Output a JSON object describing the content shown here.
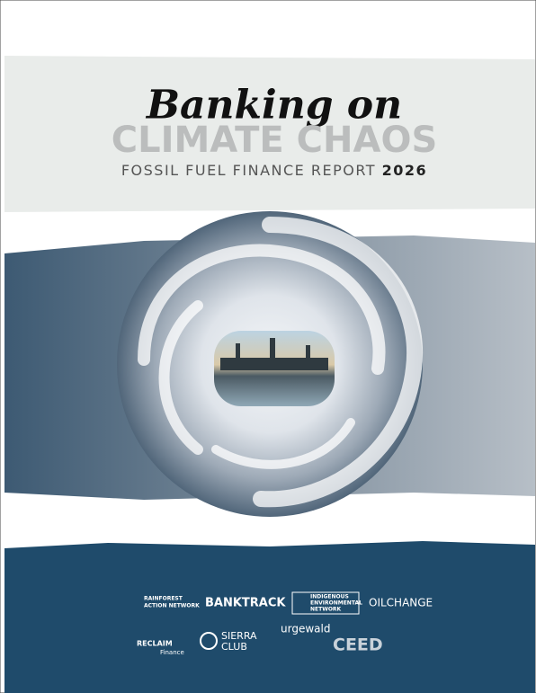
{
  "cover": {
    "title": "Banking on",
    "title_highlight": "CLIMATE CHAOS",
    "subtitle": "FOSSIL FUEL FINANCE REPORT",
    "year": "2026",
    "logos": [
      {
        "lines": [
          "RAINFOREST",
          "ACTION NETWORK"
        ]
      },
      {
        "lines": [
          "BANKTRACK"
        ]
      },
      {
        "lines": [
          "INDIGENOUS",
          "ENVIRONMENTAL",
          "NETWORK"
        ]
      },
      {
        "lines": [
          "OILCHANGE"
        ]
      },
      {
        "lines": [
          "RECLAIM",
          "Finance"
        ]
      },
      {
        "lines": [
          "SIERRA",
          "CLUB"
        ]
      },
      {
        "lines": [
          "urgewald"
        ]
      },
      {
        "lines": [
          "CEED"
        ]
      }
    ]
  }
}
